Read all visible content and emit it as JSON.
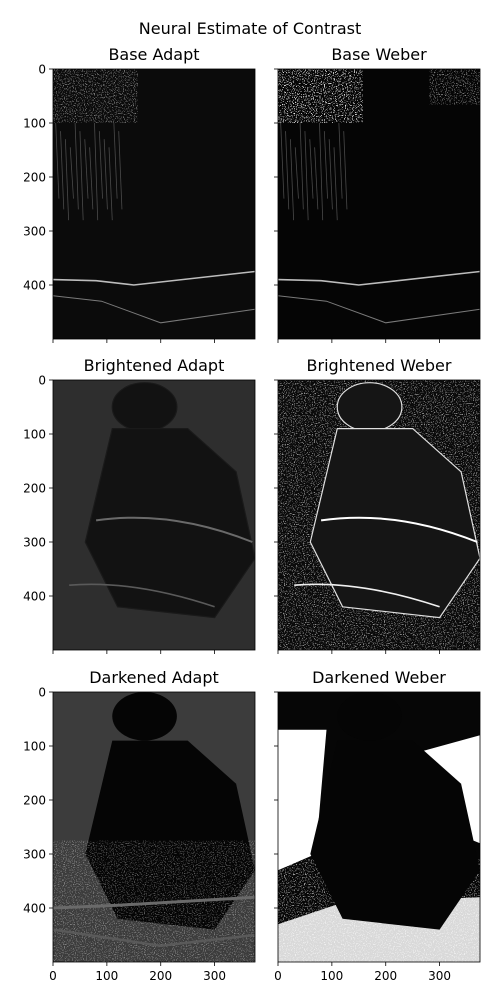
{
  "figure_title": "Neural Estimate of Contrast",
  "chart_data": [
    {
      "type": "heatmap",
      "title": "Base Adapt",
      "variant": "base",
      "kind": "adapt",
      "xlim": [
        0,
        375
      ],
      "ylim": [
        500,
        0
      ],
      "y_ticks": [
        0,
        100,
        200,
        300,
        400
      ],
      "x_ticks": [
        0,
        100,
        200,
        300
      ],
      "show_y_ticklabels": true,
      "show_x_ticklabels": false,
      "colormap": "gray"
    },
    {
      "type": "heatmap",
      "title": "Base Weber",
      "variant": "base",
      "kind": "weber",
      "xlim": [
        0,
        375
      ],
      "ylim": [
        500,
        0
      ],
      "y_ticks": [
        0,
        100,
        200,
        300,
        400
      ],
      "x_ticks": [
        0,
        100,
        200,
        300
      ],
      "show_y_ticklabels": false,
      "show_x_ticklabels": false,
      "colormap": "gray"
    },
    {
      "type": "heatmap",
      "title": "Brightened Adapt",
      "variant": "bright",
      "kind": "adapt",
      "xlim": [
        0,
        375
      ],
      "ylim": [
        500,
        0
      ],
      "y_ticks": [
        0,
        100,
        200,
        300,
        400
      ],
      "x_ticks": [
        0,
        100,
        200,
        300
      ],
      "show_y_ticklabels": true,
      "show_x_ticklabels": false,
      "colormap": "gray"
    },
    {
      "type": "heatmap",
      "title": "Brightened Weber",
      "variant": "bright",
      "kind": "weber",
      "xlim": [
        0,
        375
      ],
      "ylim": [
        500,
        0
      ],
      "y_ticks": [
        0,
        100,
        200,
        300,
        400
      ],
      "x_ticks": [
        0,
        100,
        200,
        300
      ],
      "show_y_ticklabels": false,
      "show_x_ticklabels": false,
      "colormap": "gray"
    },
    {
      "type": "heatmap",
      "title": "Darkened Adapt",
      "variant": "dark",
      "kind": "adapt",
      "xlim": [
        0,
        375
      ],
      "ylim": [
        500,
        0
      ],
      "y_ticks": [
        0,
        100,
        200,
        300,
        400
      ],
      "x_ticks": [
        0,
        100,
        200,
        300
      ],
      "show_y_ticklabels": true,
      "show_x_ticklabels": true,
      "colormap": "gray"
    },
    {
      "type": "heatmap",
      "title": "Darkened Weber",
      "variant": "dark",
      "kind": "weber",
      "xlim": [
        0,
        375
      ],
      "ylim": [
        500,
        0
      ],
      "y_ticks": [
        0,
        100,
        200,
        300,
        400
      ],
      "x_ticks": [
        0,
        100,
        200,
        300
      ],
      "show_y_ticklabels": false,
      "show_x_ticklabels": true,
      "colormap": "gray"
    }
  ]
}
